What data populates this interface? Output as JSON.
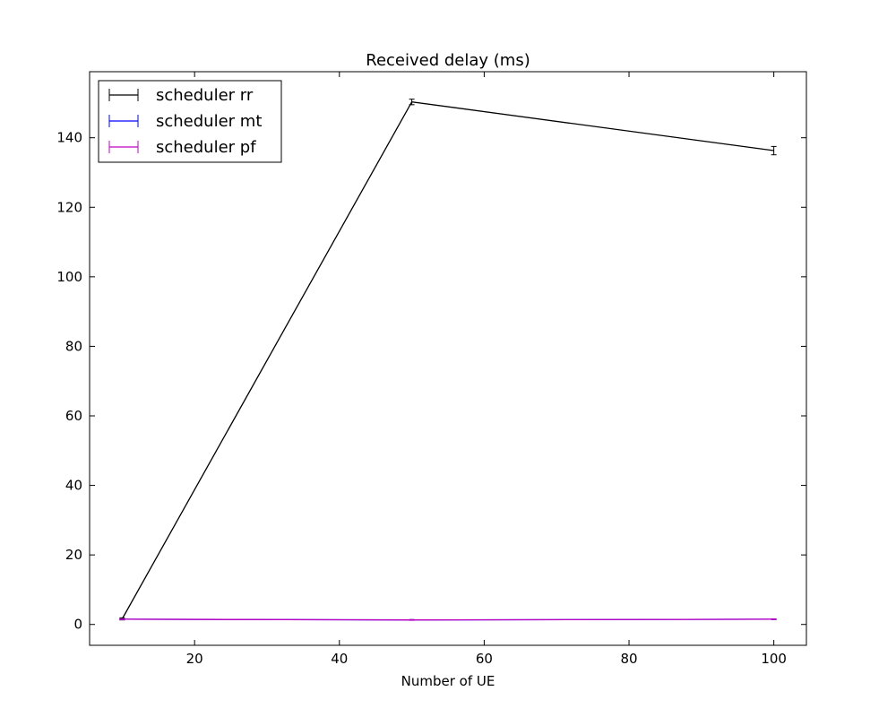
{
  "chart_data": {
    "type": "line",
    "title": "Received delay (ms)",
    "xlabel": "Number of UE",
    "ylabel": "",
    "xlim": [
      5.5,
      104.5
    ],
    "ylim": [
      -6,
      159
    ],
    "x_ticks": [
      20,
      40,
      60,
      80,
      100
    ],
    "y_ticks": [
      0,
      20,
      40,
      60,
      80,
      100,
      120,
      140
    ],
    "grid": false,
    "legend_position": "top-left",
    "series": [
      {
        "name": "scheduler rr",
        "color": "#000000",
        "x": [
          10,
          50,
          100
        ],
        "values": [
          1.6,
          150.3,
          136.3
        ],
        "err": [
          0.3,
          0.8,
          1.2
        ]
      },
      {
        "name": "scheduler mt",
        "color": "#0000ff",
        "x": [
          10,
          50,
          100
        ],
        "values": [
          1.5,
          1.3,
          1.5
        ],
        "err": [
          0.1,
          0.1,
          0.1
        ]
      },
      {
        "name": "scheduler pf",
        "color": "#bf00bf",
        "x": [
          10,
          50,
          100
        ],
        "values": [
          1.5,
          1.3,
          1.5
        ],
        "err": [
          0.1,
          0.1,
          0.1
        ]
      }
    ]
  }
}
